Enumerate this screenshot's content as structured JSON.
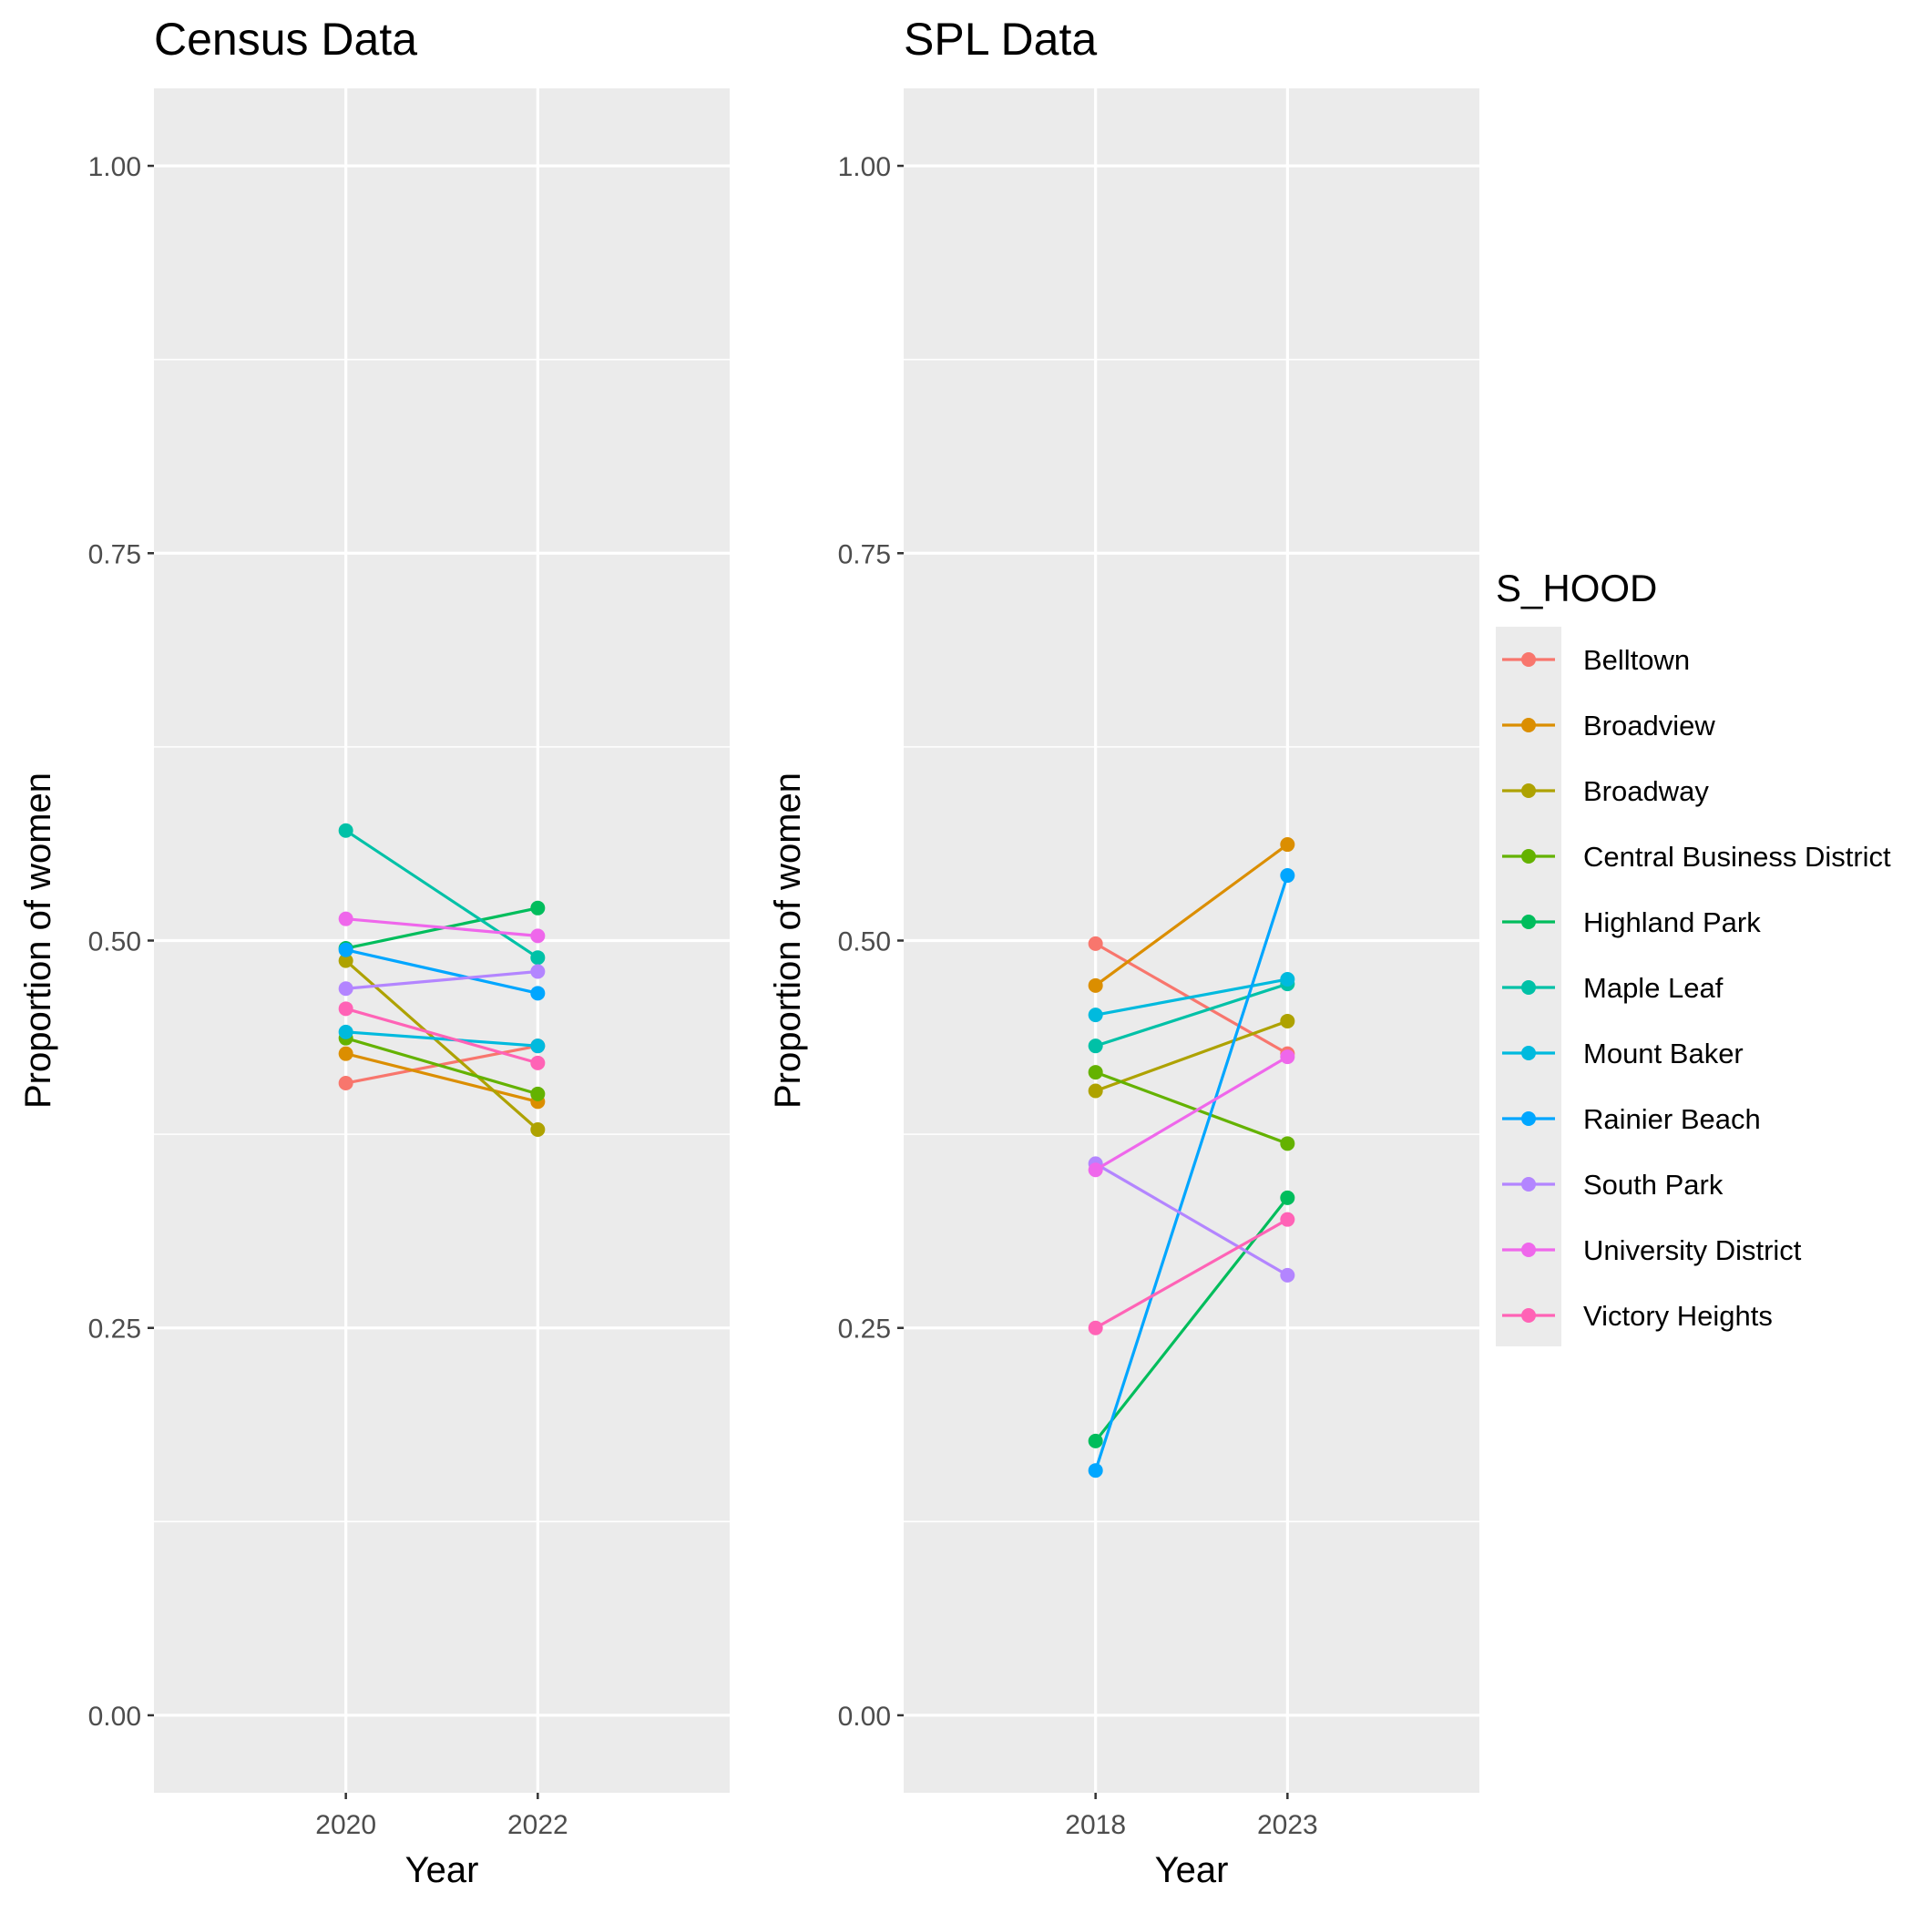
{
  "chart_data": [
    {
      "type": "line",
      "title": "Census Data",
      "xlabel": "Year",
      "ylabel": "Proportion of women",
      "categories": [
        "2020",
        "2022"
      ],
      "ylim": [
        -0.05,
        1.05
      ],
      "yticks": [
        "0.00",
        "0.25",
        "0.50",
        "0.75",
        "1.00"
      ],
      "grid": true,
      "series": [
        {
          "name": "Belltown",
          "values": [
            0.408,
            0.432
          ]
        },
        {
          "name": "Broadview",
          "values": [
            0.427,
            0.396
          ]
        },
        {
          "name": "Broadway",
          "values": [
            0.487,
            0.378
          ]
        },
        {
          "name": "Central Business District",
          "values": [
            0.437,
            0.401
          ]
        },
        {
          "name": "Highland Park",
          "values": [
            0.495,
            0.521
          ]
        },
        {
          "name": "Maple Leaf",
          "values": [
            0.571,
            0.489
          ]
        },
        {
          "name": "Mount Baker",
          "values": [
            0.441,
            0.432
          ]
        },
        {
          "name": "Rainier Beach",
          "values": [
            0.494,
            0.466
          ]
        },
        {
          "name": "South Park",
          "values": [
            0.469,
            0.48
          ]
        },
        {
          "name": "University District",
          "values": [
            0.514,
            0.503
          ]
        },
        {
          "name": "Victory Heights",
          "values": [
            0.456,
            0.421
          ]
        }
      ]
    },
    {
      "type": "line",
      "title": "SPL Data",
      "xlabel": "Year",
      "ylabel": "Proportion of women",
      "categories": [
        "2018",
        "2023"
      ],
      "ylim": [
        -0.05,
        1.05
      ],
      "yticks": [
        "0.00",
        "0.25",
        "0.50",
        "0.75",
        "1.00"
      ],
      "grid": true,
      "series": [
        {
          "name": "Belltown",
          "values": [
            0.498,
            0.427
          ]
        },
        {
          "name": "Broadview",
          "values": [
            0.471,
            0.562
          ]
        },
        {
          "name": "Broadway",
          "values": [
            0.403,
            0.448
          ]
        },
        {
          "name": "Central Business District",
          "values": [
            0.415,
            0.369
          ]
        },
        {
          "name": "Highland Park",
          "values": [
            0.177,
            0.334
          ]
        },
        {
          "name": "Maple Leaf",
          "values": [
            0.432,
            0.472
          ]
        },
        {
          "name": "Mount Baker",
          "values": [
            0.452,
            0.475
          ]
        },
        {
          "name": "Rainier Beach",
          "values": [
            0.158,
            0.542
          ]
        },
        {
          "name": "South Park",
          "values": [
            0.356,
            0.284
          ]
        },
        {
          "name": "University District",
          "values": [
            0.352,
            0.425
          ]
        },
        {
          "name": "Victory Heights",
          "values": [
            0.25,
            0.32
          ]
        }
      ]
    }
  ],
  "legend": {
    "title": "S_HOOD",
    "placement": "right",
    "items": [
      {
        "label": "Belltown",
        "color": "#F8766D"
      },
      {
        "label": "Broadview",
        "color": "#DB8E00"
      },
      {
        "label": "Broadway",
        "color": "#AEA200"
      },
      {
        "label": "Central Business District",
        "color": "#64B200"
      },
      {
        "label": "Highland Park",
        "color": "#00BD5C"
      },
      {
        "label": "Maple Leaf",
        "color": "#00C1A7"
      },
      {
        "label": "Mount Baker",
        "color": "#00BADE"
      },
      {
        "label": "Rainier Beach",
        "color": "#00A6FF"
      },
      {
        "label": "South Park",
        "color": "#B385FF"
      },
      {
        "label": "University District",
        "color": "#EF67EB"
      },
      {
        "label": "Victory Heights",
        "color": "#FF63B6"
      }
    ]
  }
}
